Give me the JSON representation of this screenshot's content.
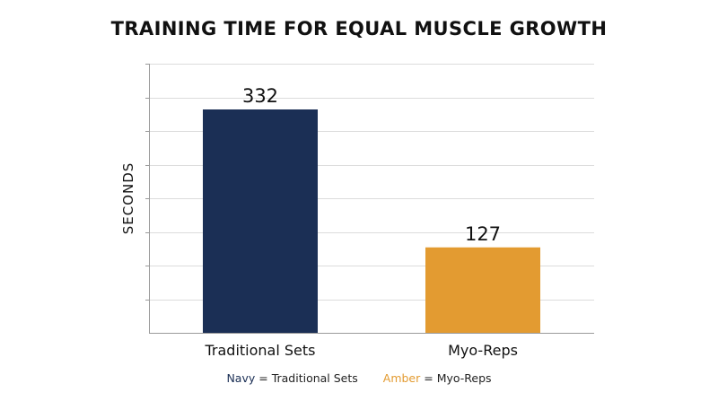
{
  "chart_data": {
    "type": "bar",
    "title": "TRAINING TIME FOR EQUAL MUSCLE GROWTH",
    "xlabel": "",
    "ylabel": "SECONDS",
    "categories": [
      "Traditional Sets",
      "Myo-Reps"
    ],
    "values": [
      332,
      127
    ],
    "data_labels": [
      "332",
      "127"
    ],
    "colors": [
      "#1b2f55",
      "#e39b31"
    ],
    "ylim": [
      0,
      400
    ],
    "grid": true,
    "legend_placement": "bottom",
    "legend": [
      {
        "swatch_word": "Navy",
        "separator": " = ",
        "label": "Traditional Sets",
        "color": "#1b2f55"
      },
      {
        "swatch_word": "Amber",
        "separator": " = ",
        "label": "Myo-Reps",
        "color": "#e39b31"
      }
    ]
  }
}
